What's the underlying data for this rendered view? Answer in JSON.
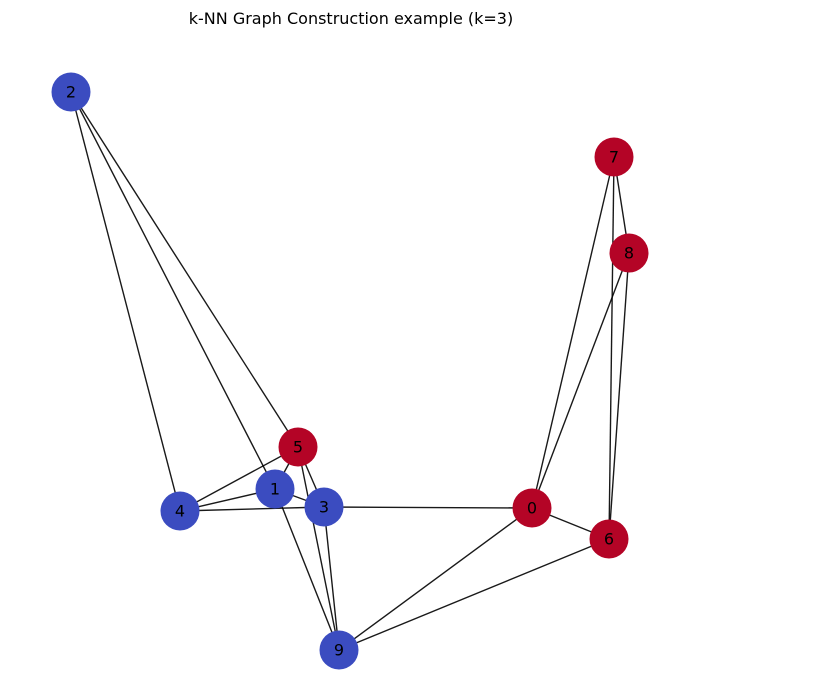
{
  "title": "k-NN Graph Construction example (k=3)",
  "colors": {
    "class_a": "#3b4cc0",
    "class_b": "#b40426",
    "edge": "#000000"
  },
  "nodes": [
    {
      "id": "0",
      "class": "class_b"
    },
    {
      "id": "1",
      "class": "class_a"
    },
    {
      "id": "2",
      "class": "class_a"
    },
    {
      "id": "3",
      "class": "class_a"
    },
    {
      "id": "4",
      "class": "class_a"
    },
    {
      "id": "5",
      "class": "class_b"
    },
    {
      "id": "6",
      "class": "class_b"
    },
    {
      "id": "7",
      "class": "class_b"
    },
    {
      "id": "8",
      "class": "class_b"
    },
    {
      "id": "9",
      "class": "class_a"
    }
  ],
  "edges": [
    [
      "2",
      "4"
    ],
    [
      "2",
      "5"
    ],
    [
      "2",
      "1"
    ],
    [
      "7",
      "8"
    ],
    [
      "7",
      "0"
    ],
    [
      "7",
      "6"
    ],
    [
      "8",
      "0"
    ],
    [
      "8",
      "6"
    ],
    [
      "5",
      "4"
    ],
    [
      "5",
      "1"
    ],
    [
      "5",
      "3"
    ],
    [
      "5",
      "9"
    ],
    [
      "4",
      "1"
    ],
    [
      "4",
      "3"
    ],
    [
      "1",
      "3"
    ],
    [
      "1",
      "9"
    ],
    [
      "3",
      "0"
    ],
    [
      "3",
      "9"
    ],
    [
      "0",
      "6"
    ],
    [
      "0",
      "9"
    ],
    [
      "6",
      "9"
    ]
  ]
}
